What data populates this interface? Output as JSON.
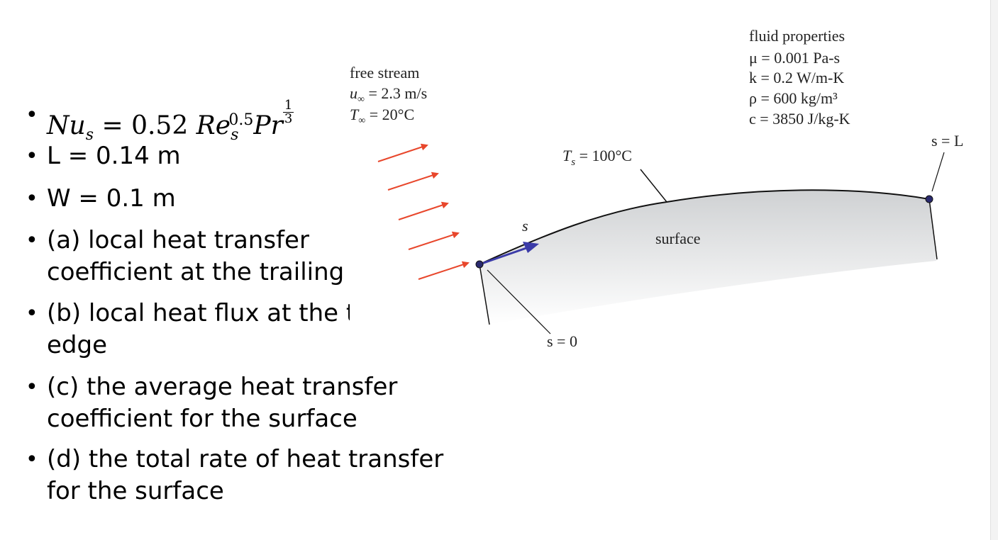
{
  "bullets": {
    "equation": {
      "lhs": "Nu",
      "lhs_sub": "s",
      "eq": "=",
      "coef": "0.52",
      "re": "Re",
      "re_sub": "s",
      "re_sup": "0.5",
      "pr": "Pr",
      "frac_num": "1",
      "frac_den": "3"
    },
    "items": [
      {
        "lines": [
          "L = 0.14 m"
        ]
      },
      {
        "lines": [
          "W = 0.1 m"
        ]
      },
      {
        "lines": [
          "(a) local heat transfer",
          "coefficient at the trailing"
        ]
      },
      {
        "lines": [
          "(b) local heat flux at the t",
          "edge"
        ]
      },
      {
        "lines": [
          "(c) the average heat transfer",
          "coefficient for the surface"
        ]
      },
      {
        "lines": [
          "(d) the total rate of heat transfer",
          "for the surface"
        ]
      }
    ]
  },
  "diagram": {
    "free_stream": {
      "title": "free stream",
      "u_sym": "u",
      "u_sub": "∞",
      "u_val": " = 2.3 m/s",
      "t_sym": "T",
      "t_sub": "∞",
      "t_val": " = 20°C"
    },
    "fluid_properties": {
      "title": "fluid properties",
      "mu": "μ = 0.001 Pa-s",
      "k": "k = 0.2 W/m-K",
      "rho": "ρ = 600 kg/m³",
      "c": "c = 3850 J/kg-K"
    },
    "ts": {
      "sym": "T",
      "sub": "s",
      "val": " = 100°C"
    },
    "surface_label": "surface",
    "s_label": "s",
    "s0_label": "s = 0",
    "sL_label": "s = L"
  },
  "colors": {
    "arrow": "#e8472c",
    "s_arrow": "#3b3ba8",
    "dot": "#2a2a6e"
  }
}
